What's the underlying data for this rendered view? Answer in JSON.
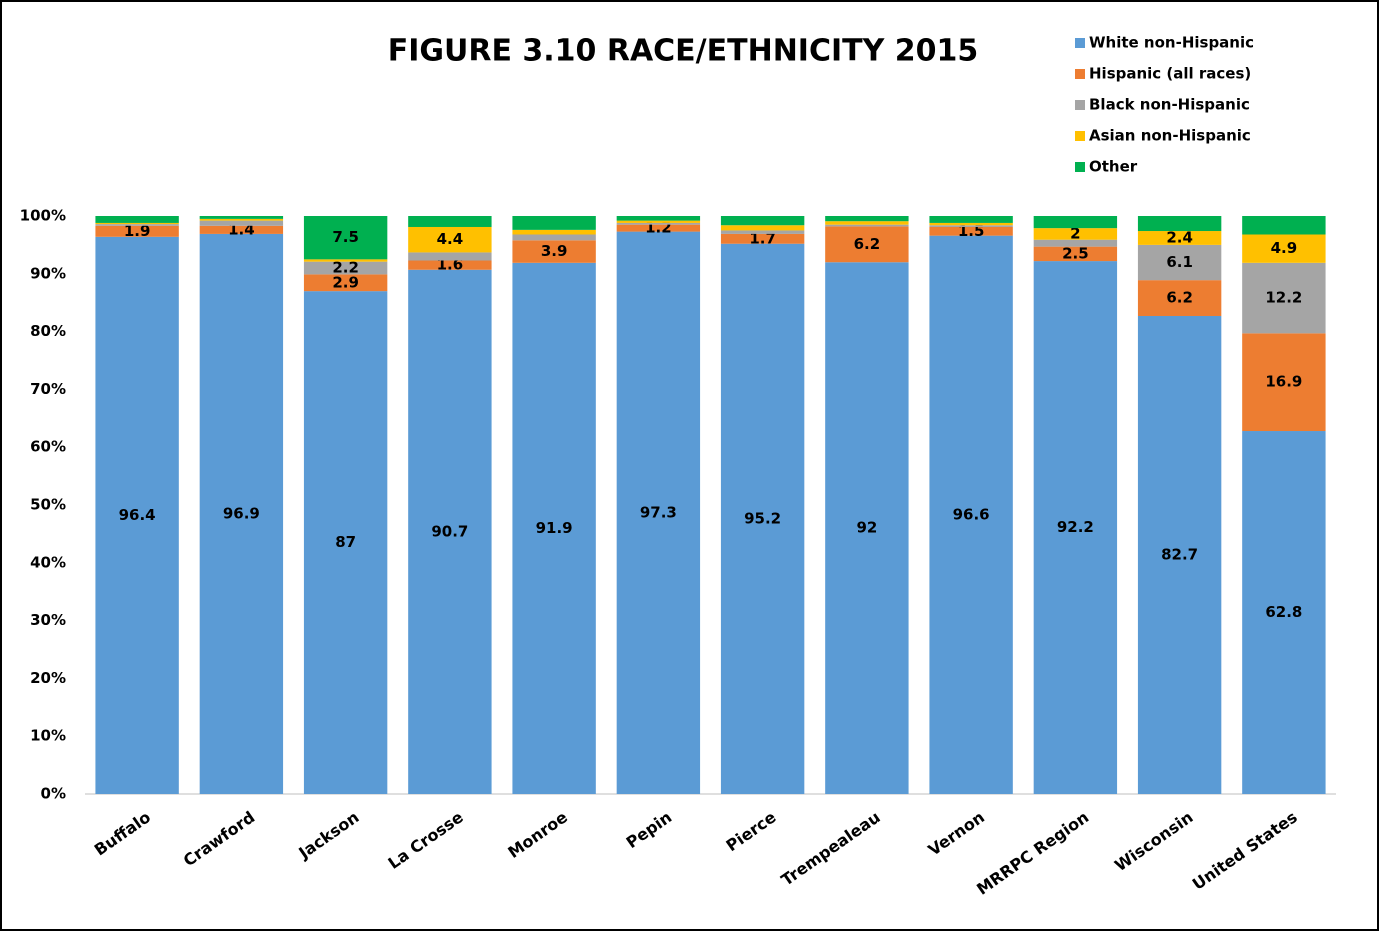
{
  "chart_data": {
    "type": "stacked_bar",
    "title": "FIGURE 3.10 RACE/ETHNICITY 2015",
    "categories": [
      "Buffalo",
      "Crawford",
      "Jackson",
      "La Crosse",
      "Monroe",
      "Pepin",
      "Pierce",
      "Trempealeau",
      "Vernon",
      "MRRPC Region",
      "Wisconsin",
      "United States"
    ],
    "series": [
      {
        "name": "White non-Hispanic",
        "color": "#5b9bd5",
        "values": [
          96.4,
          96.9,
          87,
          90.7,
          91.9,
          97.3,
          95.2,
          92,
          96.6,
          92.2,
          82.7,
          62.8
        ],
        "value_labels": [
          "96.4",
          "96.9",
          "87",
          "90.7",
          "91.9",
          "97.3",
          "95.2",
          "92",
          "96.6",
          "92.2",
          "82.7",
          "62.8"
        ]
      },
      {
        "name": "Hispanic (all races)",
        "color": "#ed7d31",
        "values": [
          1.9,
          1.4,
          2.9,
          1.6,
          3.9,
          1.2,
          1.7,
          6.2,
          1.5,
          2.5,
          6.2,
          16.9
        ],
        "value_labels": [
          "1.9",
          "1.4",
          "2.9",
          "1.6",
          "3.9",
          "1.2",
          "1.7",
          "6.2",
          "1.5",
          "2.5",
          "6.2",
          "16.9"
        ]
      },
      {
        "name": "Black non-Hispanic",
        "color": "#a5a5a5",
        "values": [
          0.3,
          0.9,
          2.2,
          1.4,
          1.0,
          0.3,
          0.6,
          0.3,
          0.3,
          1.2,
          6.1,
          12.2
        ],
        "value_labels": [
          null,
          null,
          "2.2",
          null,
          null,
          null,
          null,
          null,
          null,
          null,
          "6.1",
          "12.2"
        ]
      },
      {
        "name": "Asian non-Hispanic",
        "color": "#ffc000",
        "values": [
          0.2,
          0.3,
          0.4,
          4.4,
          0.8,
          0.4,
          0.9,
          0.6,
          0.4,
          2,
          2.4,
          4.9
        ],
        "value_labels": [
          null,
          null,
          null,
          "4.4",
          null,
          null,
          null,
          null,
          null,
          "2",
          "2.4",
          "4.9"
        ]
      },
      {
        "name": "Other",
        "color": "#00b050",
        "values": [
          1.2,
          0.5,
          7.5,
          1.9,
          2.4,
          0.8,
          1.6,
          0.9,
          1.2,
          2.1,
          2.6,
          3.2
        ],
        "value_labels": [
          null,
          null,
          "7.5",
          null,
          null,
          null,
          null,
          null,
          null,
          null,
          null,
          null
        ]
      }
    ],
    "ylim": [
      0,
      100
    ],
    "yticks": [
      {
        "value": 0,
        "label": "0%"
      },
      {
        "value": 10,
        "label": "10%"
      },
      {
        "value": 20,
        "label": "20%"
      },
      {
        "value": 30,
        "label": "30%"
      },
      {
        "value": 40,
        "label": "40%"
      },
      {
        "value": 50,
        "label": "50%"
      },
      {
        "value": 60,
        "label": "60%"
      },
      {
        "value": 70,
        "label": "70%"
      },
      {
        "value": 80,
        "label": "80%"
      },
      {
        "value": 90,
        "label": "90%"
      },
      {
        "value": 100,
        "label": "100%"
      }
    ],
    "grid": false,
    "legend": "upper right"
  }
}
